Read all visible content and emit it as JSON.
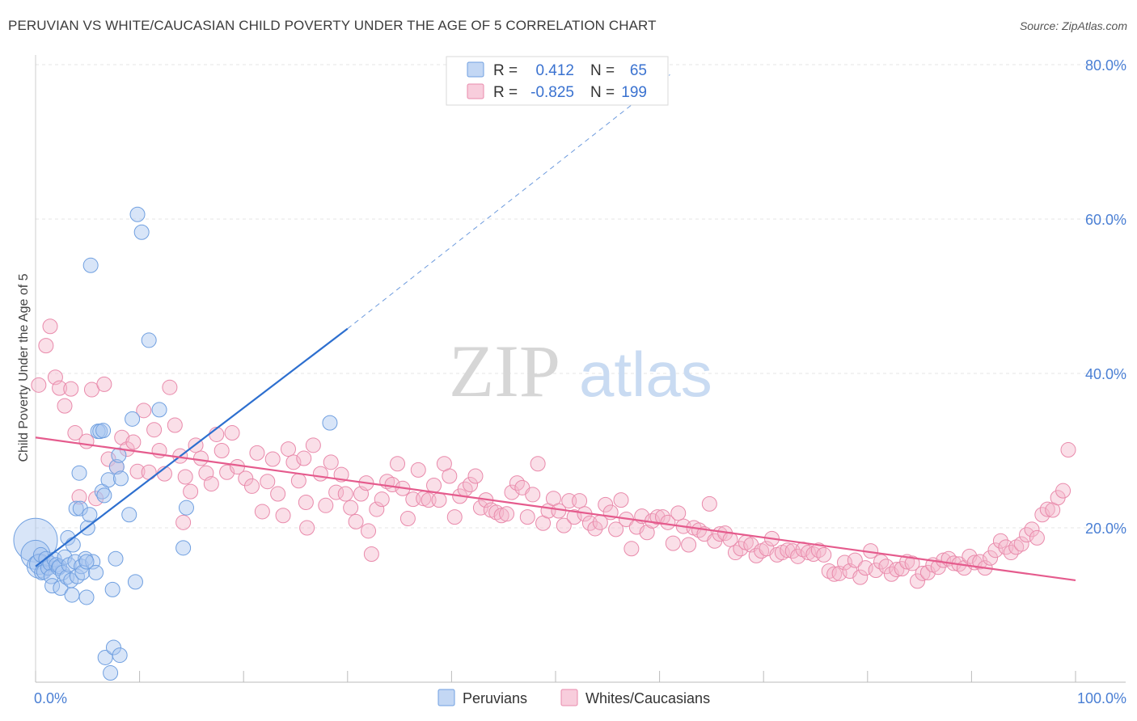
{
  "title": "PERUVIAN VS WHITE/CAUCASIAN CHILD POVERTY UNDER THE AGE OF 5 CORRELATION CHART",
  "source": "Source: ZipAtlas.com",
  "watermark": {
    "zip": "ZIP",
    "atlas": "atlas"
  },
  "colors": {
    "peruvians_fill": "#a9c6ef",
    "peruvians_stroke": "#6f9fe0",
    "peruvians_line": "#2d6fcf",
    "whites_fill": "#f5b8cd",
    "whites_stroke": "#e98aab",
    "whites_line": "#e55b8d",
    "tick_blue": "#4a7fd4",
    "grid": "#e6e6e6"
  },
  "stats_legend": [
    {
      "series": "Peruvians",
      "r_label": "R =",
      "r_value": "0.412",
      "n_label": "N =",
      "n_value": "65"
    },
    {
      "series": "Whites/Caucasians",
      "r_label": "R =",
      "r_value": "-0.825",
      "n_label": "N =",
      "n_value": "199"
    }
  ],
  "chart_data": {
    "type": "scatter",
    "title": "PERUVIAN VS WHITE/CAUCASIAN CHILD POVERTY UNDER THE AGE OF 5 CORRELATION CHART",
    "xlabel": "",
    "ylabel": "Child Poverty Under the Age of 5",
    "xlim": [
      0,
      100
    ],
    "ylim": [
      0,
      80
    ],
    "x_ticks": [
      "0.0%",
      "100.0%"
    ],
    "y_ticks": [
      "20.0%",
      "40.0%",
      "60.0%",
      "80.0%"
    ],
    "y_tick_values": [
      20,
      40,
      60,
      80
    ],
    "grid": true,
    "legend_position": "bottom",
    "series": [
      {
        "name": "Peruvians",
        "trend": {
          "x": [
            0,
            30
          ],
          "y": [
            15.0,
            45.8
          ],
          "dashed_extension_to": [
            61,
            78.7
          ]
        },
        "points": [
          [
            0.0,
            18.4,
            3
          ],
          [
            0.0,
            16.5,
            2
          ],
          [
            0.3,
            15.0,
            1.6
          ],
          [
            0.4,
            15.3,
            1.4
          ],
          [
            0.5,
            16.5,
            1
          ],
          [
            0.6,
            14.2,
            1
          ],
          [
            0.8,
            14.3,
            1
          ],
          [
            1.0,
            16.0,
            1
          ],
          [
            1.2,
            14.8,
            1
          ],
          [
            1.4,
            15.4,
            1
          ],
          [
            1.5,
            13.7,
            1
          ],
          [
            1.6,
            12.5,
            1
          ],
          [
            1.8,
            15.9,
            1
          ],
          [
            2.0,
            15.2,
            1
          ],
          [
            2.2,
            14.8,
            1
          ],
          [
            2.3,
            15.0,
            1
          ],
          [
            2.4,
            12.2,
            1
          ],
          [
            2.6,
            14.2,
            1
          ],
          [
            2.8,
            16.2,
            1
          ],
          [
            3.0,
            13.6,
            1
          ],
          [
            3.1,
            18.7,
            1
          ],
          [
            3.2,
            15.2,
            1
          ],
          [
            3.4,
            13.2,
            1
          ],
          [
            3.5,
            11.3,
            1
          ],
          [
            3.6,
            17.8,
            1
          ],
          [
            3.8,
            15.6,
            1
          ],
          [
            3.9,
            22.5,
            1
          ],
          [
            4.0,
            13.7,
            1
          ],
          [
            4.2,
            27.1,
            1
          ],
          [
            4.3,
            22.5,
            1
          ],
          [
            4.4,
            15.0,
            1
          ],
          [
            4.5,
            14.2,
            1
          ],
          [
            4.8,
            16.0,
            1
          ],
          [
            4.9,
            11.0,
            1
          ],
          [
            5.0,
            20.0,
            1
          ],
          [
            5.2,
            21.7,
            1
          ],
          [
            5.3,
            54.0,
            1
          ],
          [
            5.5,
            15.6,
            1
          ],
          [
            5.8,
            14.2,
            1
          ],
          [
            6.0,
            32.5,
            1
          ],
          [
            6.2,
            32.5,
            1
          ],
          [
            6.4,
            24.7,
            1
          ],
          [
            6.5,
            32.6,
            1
          ],
          [
            6.6,
            24.2,
            1
          ],
          [
            6.7,
            3.2,
            1
          ],
          [
            7.0,
            26.2,
            1
          ],
          [
            7.2,
            1.2,
            1
          ],
          [
            7.4,
            12.0,
            1
          ],
          [
            7.5,
            4.5,
            1
          ],
          [
            7.7,
            16.0,
            1
          ],
          [
            7.8,
            27.9,
            1
          ],
          [
            8.0,
            29.4,
            1
          ],
          [
            8.1,
            3.5,
            1
          ],
          [
            8.2,
            26.4,
            1
          ],
          [
            9.0,
            21.7,
            1
          ],
          [
            9.3,
            34.1,
            1
          ],
          [
            9.6,
            13.0,
            1
          ],
          [
            9.8,
            60.6,
            1
          ],
          [
            10.2,
            58.3,
            1
          ],
          [
            10.9,
            44.3,
            1
          ],
          [
            11.9,
            35.3,
            1
          ],
          [
            14.2,
            17.4,
            1
          ],
          [
            14.5,
            22.6,
            1
          ],
          [
            28.3,
            33.6,
            1
          ],
          [
            4.9,
            15.6,
            1
          ]
        ]
      },
      {
        "name": "Whites/Caucasians",
        "trend": {
          "x": [
            0,
            100
          ],
          "y": [
            31.7,
            13.2
          ]
        },
        "points": [
          [
            0.3,
            38.5
          ],
          [
            1.0,
            43.6
          ],
          [
            1.4,
            46.1
          ],
          [
            1.9,
            39.5
          ],
          [
            2.3,
            38.1
          ],
          [
            2.8,
            35.8
          ],
          [
            3.4,
            38.0
          ],
          [
            3.8,
            32.3
          ],
          [
            4.2,
            24.0
          ],
          [
            4.9,
            31.2
          ],
          [
            5.4,
            37.9
          ],
          [
            5.8,
            23.8
          ],
          [
            6.6,
            38.6
          ],
          [
            7.0,
            28.9
          ],
          [
            7.8,
            27.9
          ],
          [
            8.3,
            31.7
          ],
          [
            8.8,
            30.2
          ],
          [
            9.4,
            31.1
          ],
          [
            9.8,
            27.3
          ],
          [
            10.4,
            35.2
          ],
          [
            10.9,
            27.2
          ],
          [
            11.4,
            32.7
          ],
          [
            11.9,
            30.0
          ],
          [
            12.4,
            27.0
          ],
          [
            12.9,
            38.2
          ],
          [
            13.4,
            33.3
          ],
          [
            13.9,
            29.3
          ],
          [
            14.4,
            26.6
          ],
          [
            14.9,
            24.7
          ],
          [
            15.4,
            30.7
          ],
          [
            15.9,
            29.0
          ],
          [
            16.4,
            27.1
          ],
          [
            16.9,
            25.7
          ],
          [
            17.4,
            32.1
          ],
          [
            17.9,
            30.0
          ],
          [
            18.4,
            27.2
          ],
          [
            18.9,
            32.3
          ],
          [
            19.4,
            27.9
          ],
          [
            20.2,
            26.4
          ],
          [
            20.8,
            25.4
          ],
          [
            21.3,
            29.7
          ],
          [
            21.8,
            22.1
          ],
          [
            22.3,
            26.0
          ],
          [
            22.8,
            28.9
          ],
          [
            23.3,
            24.4
          ],
          [
            23.8,
            21.6
          ],
          [
            24.3,
            30.2
          ],
          [
            24.8,
            28.5
          ],
          [
            25.3,
            26.1
          ],
          [
            25.8,
            29.0
          ],
          [
            26.1,
            20.0
          ],
          [
            26.7,
            30.7
          ],
          [
            27.4,
            27.0
          ],
          [
            27.9,
            22.9
          ],
          [
            28.4,
            28.5
          ],
          [
            28.9,
            24.6
          ],
          [
            29.4,
            26.9
          ],
          [
            29.8,
            24.4
          ],
          [
            30.3,
            22.6
          ],
          [
            30.8,
            20.8
          ],
          [
            31.3,
            24.4
          ],
          [
            31.8,
            25.8
          ],
          [
            32.3,
            16.6
          ],
          [
            32.8,
            22.4
          ],
          [
            33.3,
            23.7
          ],
          [
            33.8,
            26.0
          ],
          [
            34.3,
            25.6
          ],
          [
            34.8,
            28.3
          ],
          [
            35.3,
            25.1
          ],
          [
            35.8,
            21.2
          ],
          [
            36.3,
            23.7
          ],
          [
            36.8,
            27.5
          ],
          [
            37.3,
            23.8
          ],
          [
            37.8,
            23.6
          ],
          [
            38.3,
            25.5
          ],
          [
            38.8,
            23.6
          ],
          [
            39.3,
            28.3
          ],
          [
            39.8,
            26.7
          ],
          [
            40.3,
            21.4
          ],
          [
            40.8,
            24.1
          ],
          [
            41.3,
            25.0
          ],
          [
            41.8,
            25.6
          ],
          [
            42.3,
            26.7
          ],
          [
            42.8,
            22.6
          ],
          [
            43.3,
            23.6
          ],
          [
            43.8,
            22.3
          ],
          [
            44.3,
            22.0
          ],
          [
            44.8,
            21.6
          ],
          [
            45.3,
            21.8
          ],
          [
            45.8,
            24.6
          ],
          [
            46.3,
            25.8
          ],
          [
            46.8,
            25.2
          ],
          [
            47.3,
            21.4
          ],
          [
            47.8,
            24.3
          ],
          [
            48.3,
            28.3
          ],
          [
            48.8,
            20.6
          ],
          [
            49.3,
            22.2
          ],
          [
            49.8,
            23.8
          ],
          [
            50.3,
            22.2
          ],
          [
            50.8,
            20.3
          ],
          [
            51.3,
            23.5
          ],
          [
            51.8,
            21.4
          ],
          [
            52.3,
            23.5
          ],
          [
            52.8,
            21.8
          ],
          [
            53.3,
            20.6
          ],
          [
            53.8,
            19.9
          ],
          [
            54.3,
            20.7
          ],
          [
            54.8,
            23.0
          ],
          [
            55.3,
            22.0
          ],
          [
            55.8,
            19.8
          ],
          [
            56.3,
            23.6
          ],
          [
            56.8,
            21.1
          ],
          [
            57.3,
            17.3
          ],
          [
            57.8,
            20.1
          ],
          [
            58.3,
            21.5
          ],
          [
            58.8,
            19.4
          ],
          [
            59.3,
            20.9
          ],
          [
            59.8,
            21.4
          ],
          [
            60.3,
            21.4
          ],
          [
            60.8,
            20.7
          ],
          [
            61.3,
            18.0
          ],
          [
            61.8,
            21.9
          ],
          [
            62.3,
            20.2
          ],
          [
            62.8,
            17.8
          ],
          [
            63.3,
            20.0
          ],
          [
            63.8,
            19.7
          ],
          [
            64.3,
            19.2
          ],
          [
            64.8,
            23.1
          ],
          [
            65.3,
            18.3
          ],
          [
            65.8,
            19.2
          ],
          [
            66.3,
            19.3
          ],
          [
            66.8,
            18.5
          ],
          [
            67.3,
            16.8
          ],
          [
            67.8,
            17.3
          ],
          [
            68.3,
            18.1
          ],
          [
            68.8,
            17.8
          ],
          [
            69.3,
            16.4
          ],
          [
            69.8,
            17.0
          ],
          [
            70.3,
            17.3
          ],
          [
            70.8,
            18.6
          ],
          [
            71.3,
            16.5
          ],
          [
            71.8,
            16.8
          ],
          [
            72.3,
            17.1
          ],
          [
            72.8,
            17.0
          ],
          [
            73.3,
            16.3
          ],
          [
            73.8,
            17.2
          ],
          [
            74.3,
            16.8
          ],
          [
            74.8,
            16.6
          ],
          [
            75.3,
            17.1
          ],
          [
            75.8,
            16.5
          ],
          [
            76.3,
            14.4
          ],
          [
            76.8,
            14.0
          ],
          [
            77.3,
            14.1
          ],
          [
            77.8,
            15.5
          ],
          [
            78.3,
            14.4
          ],
          [
            78.8,
            15.8
          ],
          [
            79.3,
            13.6
          ],
          [
            79.8,
            14.8
          ],
          [
            80.3,
            17.0
          ],
          [
            80.8,
            14.5
          ],
          [
            81.3,
            15.6
          ],
          [
            81.8,
            15.0
          ],
          [
            82.3,
            14.0
          ],
          [
            82.8,
            14.6
          ],
          [
            83.3,
            14.7
          ],
          [
            83.8,
            15.6
          ],
          [
            84.3,
            15.4
          ],
          [
            84.8,
            13.1
          ],
          [
            85.3,
            14.1
          ],
          [
            85.8,
            14.2
          ],
          [
            86.3,
            15.2
          ],
          [
            86.8,
            14.9
          ],
          [
            87.3,
            15.8
          ],
          [
            87.8,
            16.0
          ],
          [
            88.3,
            15.4
          ],
          [
            88.8,
            15.3
          ],
          [
            89.3,
            14.8
          ],
          [
            89.8,
            16.3
          ],
          [
            90.3,
            15.5
          ],
          [
            90.8,
            15.6
          ],
          [
            91.3,
            14.8
          ],
          [
            91.8,
            16.1
          ],
          [
            92.3,
            17.1
          ],
          [
            92.8,
            18.3
          ],
          [
            93.3,
            17.5
          ],
          [
            93.8,
            16.8
          ],
          [
            94.3,
            17.5
          ],
          [
            94.8,
            17.9
          ],
          [
            95.3,
            19.1
          ],
          [
            95.8,
            19.8
          ],
          [
            96.3,
            18.7
          ],
          [
            96.8,
            21.7
          ],
          [
            97.3,
            22.4
          ],
          [
            97.8,
            22.3
          ],
          [
            98.3,
            23.9
          ],
          [
            98.8,
            24.8
          ],
          [
            99.3,
            30.1
          ],
          [
            14.2,
            20.7
          ],
          [
            26.0,
            23.3
          ],
          [
            32.0,
            19.6
          ]
        ]
      }
    ]
  },
  "bottom_legend": [
    {
      "label": "Peruvians",
      "series": "Peruvians"
    },
    {
      "label": "Whites/Caucasians",
      "series": "Whites/Caucasians"
    }
  ]
}
